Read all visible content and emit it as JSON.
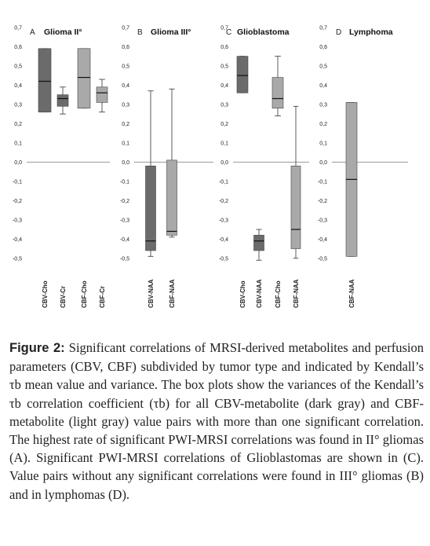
{
  "colors": {
    "cbv_box": "#6b6b6b",
    "cbf_box": "#a9a9a9",
    "zero_line": "#9a9a9a",
    "panel_bg": "#ffffff",
    "text": "#222222"
  },
  "chart_data": [
    {
      "type": "box",
      "panel_letter": "A",
      "title": "Glioma II°",
      "ylim": [
        -0.55,
        0.72
      ],
      "yticks": [
        "0,7",
        "0,6",
        "0,5",
        "0,4",
        "0,3",
        "0,2",
        "0,1",
        "0,0",
        "-0,1",
        "-0,2",
        "-0,3",
        "-0,4",
        "-0,5"
      ],
      "boxes": [
        {
          "label": "CBV-Cho",
          "color": "cbv",
          "min": 0.26,
          "q1": 0.26,
          "median": 0.42,
          "q3": 0.59,
          "max": 0.59
        },
        {
          "label": "CBV-Cr",
          "color": "cbv",
          "min": 0.25,
          "q1": 0.29,
          "median": 0.33,
          "q3": 0.35,
          "max": 0.39
        },
        {
          "label": "CBF-Cho",
          "color": "cbf",
          "min": 0.28,
          "q1": 0.28,
          "median": 0.44,
          "q3": 0.59,
          "max": 0.59
        },
        {
          "label": "CBF-Cr",
          "color": "cbf",
          "min": 0.26,
          "q1": 0.31,
          "median": 0.36,
          "q3": 0.39,
          "max": 0.43
        }
      ]
    },
    {
      "type": "box",
      "panel_letter": "B",
      "title": "Glioma III°",
      "ylim": [
        -0.55,
        0.72
      ],
      "yticks": [
        "0,7",
        "0,6",
        "0,5",
        "0,4",
        "0,3",
        "0,2",
        "0,1",
        "0,0",
        "-0,1",
        "-0,2",
        "-0,3",
        "-0,4",
        "-0,5"
      ],
      "boxes": [
        {
          "label": "CBV-NAA",
          "color": "cbv",
          "min": -0.49,
          "q1": -0.46,
          "median": -0.41,
          "q3": -0.02,
          "max": 0.37
        },
        {
          "label": "CBF-NAA",
          "color": "cbf",
          "min": -0.39,
          "q1": -0.38,
          "median": -0.36,
          "q3": 0.01,
          "max": 0.38
        }
      ]
    },
    {
      "type": "box",
      "panel_letter": "C",
      "title": "Glioblastoma",
      "ylim": [
        -0.55,
        0.72
      ],
      "yticks": [
        "0,7",
        "0,6",
        "0,5",
        "0,4",
        "0,3",
        "0,2",
        "0,1",
        "0,0",
        "-0,1",
        "-0,2",
        "-0,3",
        "-0,4",
        "-0,5"
      ],
      "boxes": [
        {
          "label": "CBV-Cho",
          "color": "cbv",
          "min": 0.36,
          "q1": 0.36,
          "median": 0.45,
          "q3": 0.55,
          "max": 0.55
        },
        {
          "label": "CBV-NAA",
          "color": "cbv",
          "min": -0.51,
          "q1": -0.46,
          "median": -0.41,
          "q3": -0.38,
          "max": -0.35
        },
        {
          "label": "CBF-Cho",
          "color": "cbf",
          "min": 0.24,
          "q1": 0.28,
          "median": 0.33,
          "q3": 0.44,
          "max": 0.55
        },
        {
          "label": "CBF-NAA",
          "color": "cbf",
          "min": -0.5,
          "q1": -0.45,
          "median": -0.35,
          "q3": -0.02,
          "max": 0.29
        }
      ]
    },
    {
      "type": "box",
      "panel_letter": "D",
      "title": "Lymphoma",
      "ylim": [
        -0.55,
        0.72
      ],
      "yticks": [
        "0,7",
        "0,6",
        "0,5",
        "0,4",
        "0,3",
        "0,2",
        "0,1",
        "0,0",
        "-0,1",
        "-0,2",
        "-0,3",
        "-0,4",
        "-0,5"
      ],
      "boxes": [
        {
          "label": "CBF-NAA",
          "color": "cbf",
          "min": -0.49,
          "q1": -0.49,
          "median": -0.09,
          "q3": 0.31,
          "max": 0.31
        }
      ]
    }
  ],
  "caption": {
    "label": "Figure 2:",
    "text": " Significant correlations of MRSI-derived metabolites and perfusion parameters (CBV, CBF) subdivided by tumor type and indicated by Kendall’s τb mean value and variance. The box plots show the variances of the Kendall’s τb correlation coefficient (τb) for all CBV-metabolite (dark gray) and CBF-metabolite (light gray) value pairs with more than one significant correlation. The highest rate of significant PWI-MRSI correlations was found in II° gliomas (A). Significant PWI-MRSI correlations of Glioblastomas are shown in (C). Value pairs without any significant correlations were found in III° gliomas (B) and in lymphomas (D)."
  }
}
